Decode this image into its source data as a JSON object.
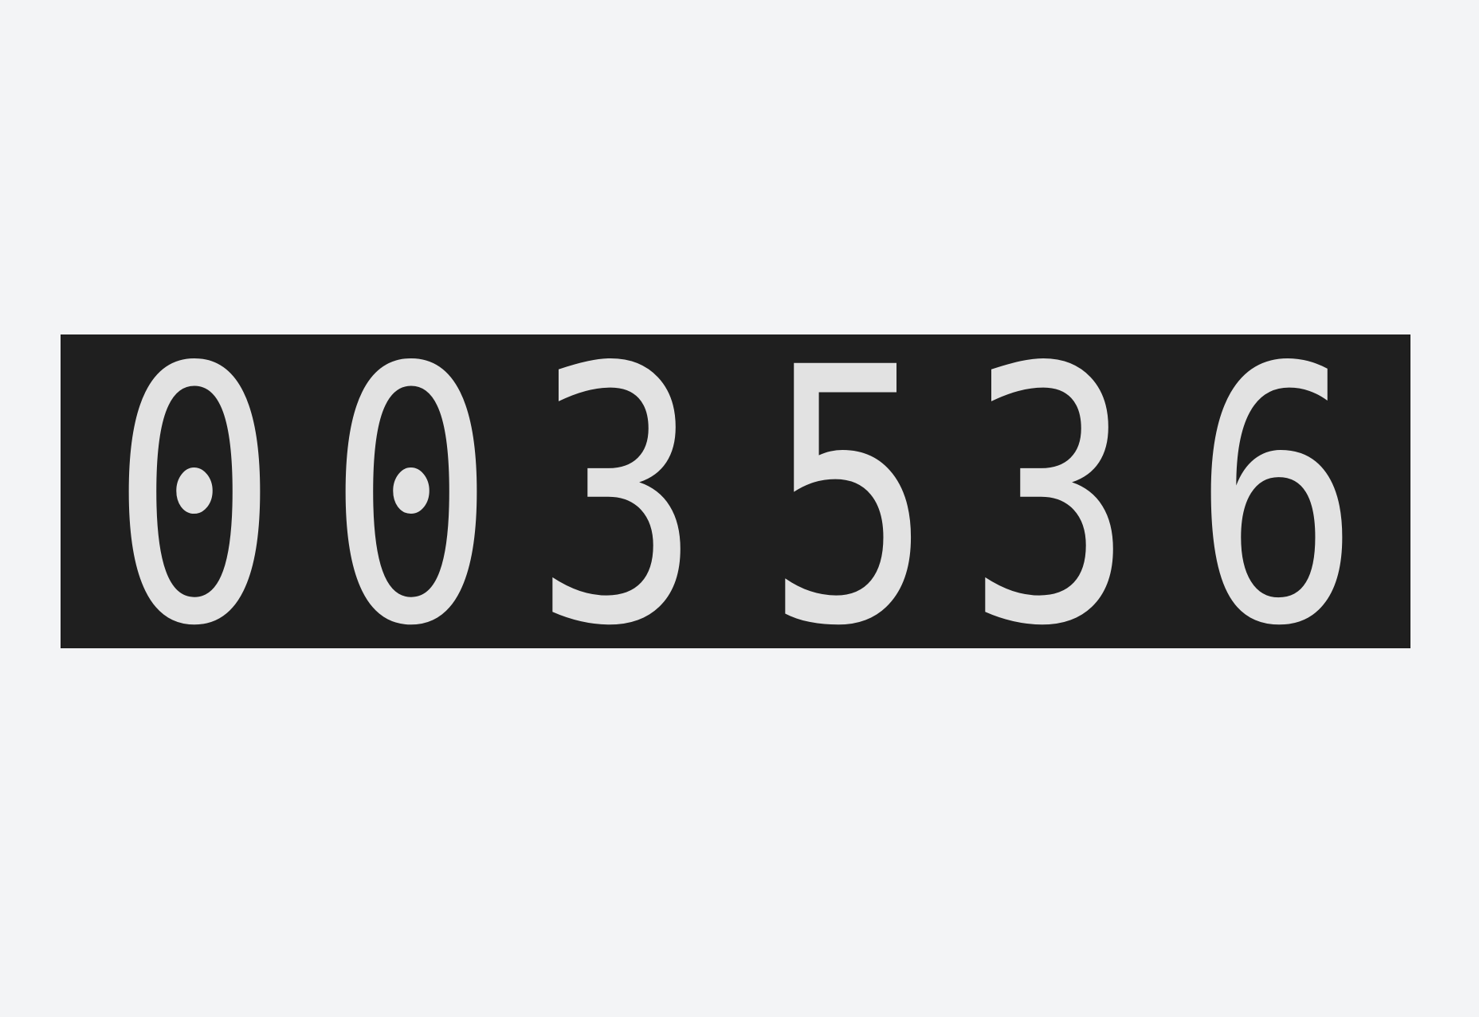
{
  "counter": {
    "value": "003536",
    "digits": [
      "0",
      "0",
      "3",
      "5",
      "3",
      "6"
    ]
  },
  "colors": {
    "background": "#f3f4f6",
    "panel": "#1f1f1f",
    "digit": "#e2e2e2"
  }
}
